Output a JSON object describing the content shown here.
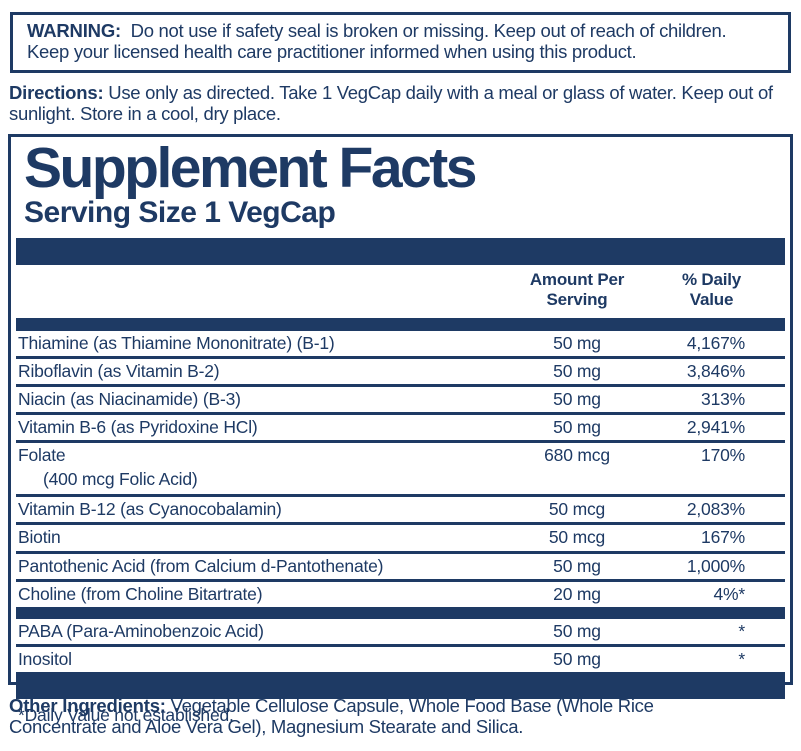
{
  "colors": {
    "navy": "#1e3a64",
    "background": "#ffffff"
  },
  "warning": {
    "label": "WARNING:",
    "text": "Do not use if safety seal is broken or missing. Keep out of reach of children. Keep your licensed health care practitioner informed when using this product."
  },
  "directions": {
    "label": "Directions:",
    "text": "Use only as directed. Take 1 VegCap daily with a meal or glass of water.  Keep out of sunlight. Store in a cool, dry place."
  },
  "supplement_facts": {
    "title": "Supplement Facts",
    "serving_size": "Serving Size 1 VegCap",
    "columns": {
      "amount": [
        "Amount Per",
        "Serving"
      ],
      "daily_value": [
        "% Daily",
        "Value"
      ]
    },
    "rows": [
      {
        "name": "Thiamine (as Thiamine Mononitrate) (B-1)",
        "amount": "50 mg",
        "dv": "4,167%"
      },
      {
        "name": "Riboflavin (as Vitamin B-2)",
        "amount": "50 mg",
        "dv": "3,846%"
      },
      {
        "name": "Niacin (as Niacinamide) (B-3)",
        "amount": "50 mg",
        "dv": "313%"
      },
      {
        "name": "Vitamin B-6 (as Pyridoxine HCl)",
        "amount": "50 mg",
        "dv": "2,941%"
      },
      {
        "name": "Folate",
        "subname": "(400 mcg Folic Acid)",
        "amount": "680 mcg",
        "dv": "170%"
      },
      {
        "name": "Vitamin B-12 (as Cyanocobalamin)",
        "amount": "50 mcg",
        "dv": "2,083%"
      },
      {
        "name": "Biotin",
        "amount": "50 mcg",
        "dv": "167%"
      },
      {
        "name": "Pantothenic Acid (from Calcium d-Pantothenate)",
        "amount": "50 mg",
        "dv": "1,000%"
      },
      {
        "name": "Choline (from Choline Bitartrate)",
        "amount": "20 mg",
        "dv": "4%*"
      },
      {
        "name": "PABA (Para-Aminobenzoic Acid)",
        "amount": "50 mg",
        "dv": "*"
      },
      {
        "name": "Inositol",
        "amount": "50 mg",
        "dv": "*"
      }
    ],
    "footnote": "*Daily Value not established."
  },
  "other_ingredients": {
    "label": "Other Ingredients:",
    "text": "Vegetable Cellulose Capsule, Whole Food Base (Whole Rice Concentrate and Aloe Vera Gel), Magnesium Stearate and Silica."
  }
}
